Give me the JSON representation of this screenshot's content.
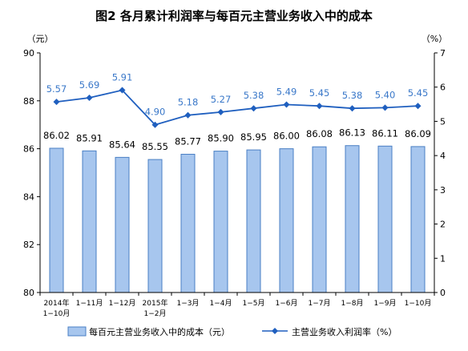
{
  "chart_data": {
    "type": "bar+line",
    "title": "图2  各月累计利润率与每百元主营业务收入中的成本",
    "left_unit": "（元）",
    "right_unit": "（%）",
    "categories": [
      [
        "2014年",
        "1−10月"
      ],
      [
        "1−11月"
      ],
      [
        "1−12月"
      ],
      [
        "2015年",
        "1−2月"
      ],
      [
        "1−3月"
      ],
      [
        "1−4月"
      ],
      [
        "1−5月"
      ],
      [
        "1−6月"
      ],
      [
        "1−7月"
      ],
      [
        "1−8月"
      ],
      [
        "1−9月"
      ],
      [
        "1−10月"
      ]
    ],
    "series": [
      {
        "name": "每百元主营业务收入中的成本（元）",
        "type": "bar",
        "axis": "left",
        "color": "#a7c6ee",
        "border": "#4a7fc4",
        "values": [
          86.02,
          85.91,
          85.64,
          85.55,
          85.77,
          85.9,
          85.95,
          86.0,
          86.08,
          86.13,
          86.11,
          86.09
        ],
        "labels": [
          "86.02",
          "85.91",
          "85.64",
          "85.55",
          "85.77",
          "85.90",
          "85.95",
          "86.00",
          "86.08",
          "86.13",
          "86.11",
          "86.09"
        ]
      },
      {
        "name": "主营业务收入利润率（%）",
        "type": "line",
        "axis": "right",
        "color": "#1f5fbf",
        "values": [
          5.57,
          5.69,
          5.91,
          4.9,
          5.18,
          5.27,
          5.38,
          5.49,
          5.45,
          5.38,
          5.4,
          5.45
        ],
        "labels": [
          "5.57",
          "5.69",
          "5.91",
          "4.90",
          "5.18",
          "5.27",
          "5.38",
          "5.49",
          "5.45",
          "5.38",
          "5.40",
          "5.45"
        ]
      }
    ],
    "ylim_left": [
      80,
      90
    ],
    "yticks_left": [
      "80",
      "82",
      "84",
      "86",
      "88",
      "90"
    ],
    "ylim_right": [
      0,
      7
    ],
    "yticks_right": [
      "0",
      "1",
      "2",
      "3",
      "4",
      "5",
      "6",
      "7"
    ],
    "grid": false,
    "legend": "bottom"
  }
}
